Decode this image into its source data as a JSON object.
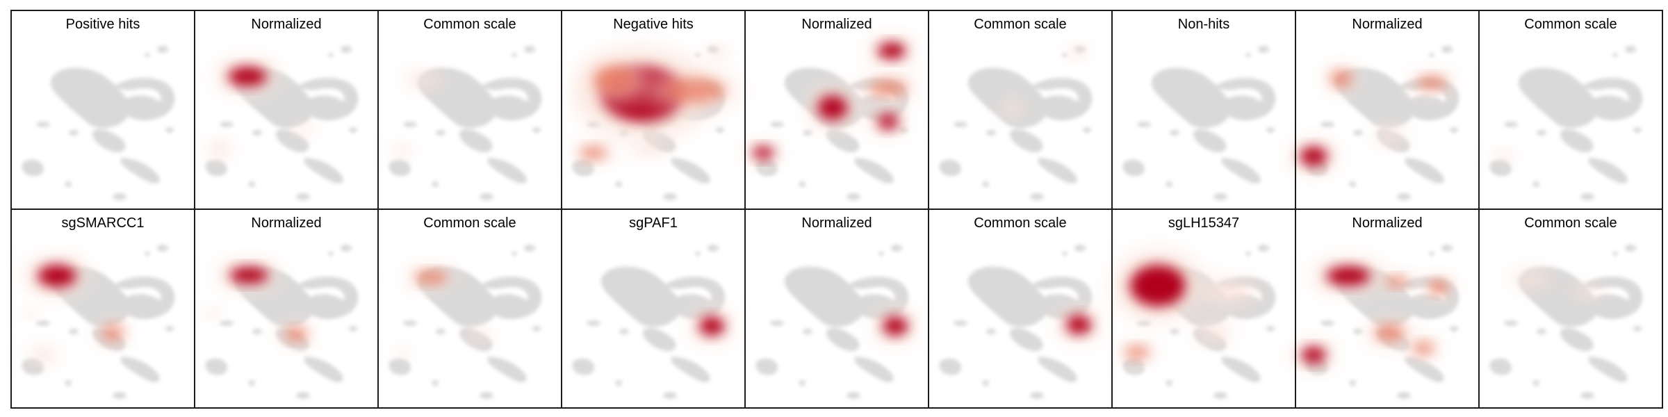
{
  "figure": {
    "colors": {
      "background": "#ffffff",
      "umap_gray": "#d9d9d9",
      "heat_low": "#fbe3da",
      "heat_mid": "#e8785e",
      "heat_high": "#b1001c",
      "heat_peak_orange": "#e0521f",
      "border": "#1a1a1a"
    },
    "rows": [
      {
        "panels": [
          {
            "title": "Positive hits",
            "kind": "base"
          },
          {
            "title": "Normalized",
            "kind": "normalized"
          },
          {
            "title": "Common scale",
            "kind": "common"
          },
          {
            "title": "Negative hits",
            "kind": "base"
          },
          {
            "title": "Normalized",
            "kind": "normalized"
          },
          {
            "title": "Common scale",
            "kind": "common"
          },
          {
            "title": "Non-hits",
            "kind": "base"
          },
          {
            "title": "Normalized",
            "kind": "normalized"
          },
          {
            "title": "Common scale",
            "kind": "common"
          }
        ]
      },
      {
        "panels": [
          {
            "title": "sgSMARCC1",
            "kind": "base"
          },
          {
            "title": "Normalized",
            "kind": "normalized"
          },
          {
            "title": "Common scale",
            "kind": "common"
          },
          {
            "title": "sgPAF1",
            "kind": "base"
          },
          {
            "title": "Normalized",
            "kind": "normalized"
          },
          {
            "title": "Common scale",
            "kind": "common"
          },
          {
            "title": "sgLH15347",
            "kind": "base"
          },
          {
            "title": "Normalized",
            "kind": "normalized"
          },
          {
            "title": "Common scale",
            "kind": "common"
          }
        ]
      }
    ]
  }
}
